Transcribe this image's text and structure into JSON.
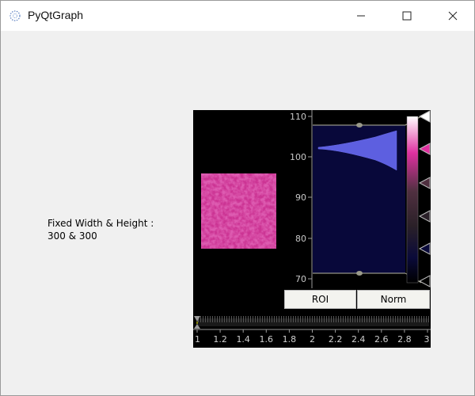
{
  "window": {
    "title": "PyQtGraph",
    "icon": "pyqtgraph-logo-icon"
  },
  "controls": {
    "minimize": "minimize-icon",
    "maximize": "maximize-icon",
    "close": "close-icon"
  },
  "label": {
    "text": "Fixed Width & Height :\n300 & 300"
  },
  "image_view": {
    "histogram": {
      "axis_ticks": [
        "110",
        "100",
        "90",
        "80",
        "70"
      ],
      "level_min": 71.5,
      "level_max": 107.5
    },
    "buttons": {
      "roi": "ROI",
      "norm": "Norm"
    },
    "timeline": {
      "ticks": [
        "1",
        "1.2",
        "1.4",
        "1.6",
        "1.8",
        "2",
        "2.2",
        "2.4",
        "2.6",
        "2.8",
        "3"
      ],
      "current": 1
    },
    "colors": {
      "background": "#000000",
      "histogram_fill": "#5d5fe0",
      "histogram_region": "#08083a",
      "gradient_stops": [
        "#ffffff",
        "#e030a0",
        "#503040",
        "#2a2028",
        "#0a0a3a",
        "#000000"
      ],
      "image_tint": "#d43c9e"
    }
  }
}
